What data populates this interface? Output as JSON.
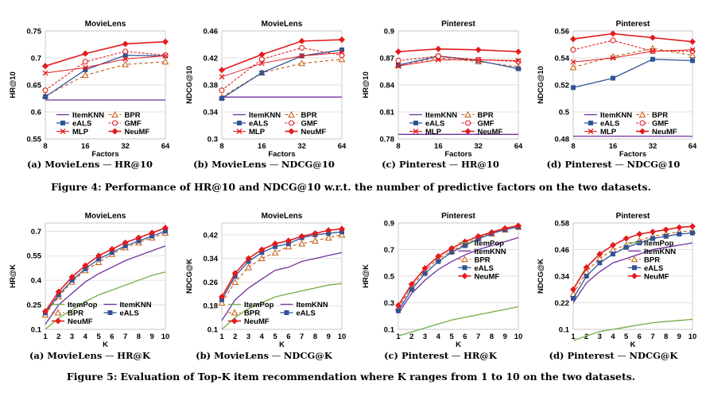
{
  "chart_data": [
    {
      "id": "f4a",
      "type": "line",
      "title": "MovieLens",
      "ylabel": "HR@10",
      "xlabel": "Factors",
      "x": [
        "8",
        "16",
        "32",
        "64"
      ],
      "ylim": [
        0.55,
        0.75
      ],
      "yticks": [
        "0.55",
        "0.6",
        "0.65",
        "0.7",
        "0.75"
      ],
      "legend_pos": "bottom",
      "legend_cols": 2,
      "legend_yfrac": 0.27,
      "series": [
        {
          "name": "ItemKNN",
          "style": "knn",
          "values": [
            0.622,
            0.622,
            0.622,
            0.622
          ]
        },
        {
          "name": "BPR",
          "style": "bpr",
          "values": [
            0.63,
            0.668,
            0.688,
            0.693
          ]
        },
        {
          "name": "eALS",
          "style": "eals",
          "values": [
            0.628,
            0.678,
            0.705,
            0.704
          ]
        },
        {
          "name": "GMF",
          "style": "gmf",
          "values": [
            0.64,
            0.693,
            0.712,
            0.705
          ]
        },
        {
          "name": "MLP",
          "style": "mlp",
          "values": [
            0.672,
            0.682,
            0.698,
            0.704
          ]
        },
        {
          "name": "NeuMF",
          "style": "neumf",
          "values": [
            0.685,
            0.708,
            0.726,
            0.73
          ]
        }
      ]
    },
    {
      "id": "f4b",
      "type": "line",
      "title": "MovieLens",
      "ylabel": "NDCG@10",
      "xlabel": "Factors",
      "x": [
        "8",
        "16",
        "32",
        "64"
      ],
      "ylim": [
        0.3,
        0.46
      ],
      "yticks": [
        "0.3",
        "0.34",
        "0.38",
        "0.42",
        "0.46"
      ],
      "legend_pos": "bottom",
      "legend_cols": 2,
      "legend_yfrac": 0.27,
      "series": [
        {
          "name": "ItemKNN",
          "style": "knn",
          "values": [
            0.362,
            0.362,
            0.362,
            0.362
          ]
        },
        {
          "name": "BPR",
          "style": "bpr",
          "values": [
            0.362,
            0.398,
            0.412,
            0.418
          ]
        },
        {
          "name": "eALS",
          "style": "eals",
          "values": [
            0.36,
            0.398,
            0.423,
            0.432
          ]
        },
        {
          "name": "GMF",
          "style": "gmf",
          "values": [
            0.372,
            0.418,
            0.435,
            0.424
          ]
        },
        {
          "name": "MLP",
          "style": "mlp",
          "values": [
            0.392,
            0.412,
            0.423,
            0.428
          ]
        },
        {
          "name": "NeuMF",
          "style": "neumf",
          "values": [
            0.402,
            0.425,
            0.445,
            0.447
          ]
        }
      ]
    },
    {
      "id": "f4c",
      "type": "line",
      "title": "Pinterest",
      "ylabel": "HR@10",
      "xlabel": "Factors",
      "x": [
        "8",
        "16",
        "32",
        "64"
      ],
      "ylim": [
        0.78,
        0.9
      ],
      "yticks": [
        "0.78",
        "0.81",
        "0.84",
        "0.87",
        "0.9"
      ],
      "legend_pos": "bottom",
      "legend_cols": 2,
      "legend_yfrac": 0.27,
      "series": [
        {
          "name": "ItemKNN",
          "style": "knn",
          "values": [
            0.785,
            0.785,
            0.785,
            0.785
          ]
        },
        {
          "name": "BPR",
          "style": "bpr",
          "values": [
            0.862,
            0.87,
            0.866,
            0.86
          ]
        },
        {
          "name": "eALS",
          "style": "eals",
          "values": [
            0.862,
            0.872,
            0.867,
            0.858
          ]
        },
        {
          "name": "GMF",
          "style": "gmf",
          "values": [
            0.867,
            0.872,
            0.868,
            0.866
          ]
        },
        {
          "name": "MLP",
          "style": "mlp",
          "values": [
            0.861,
            0.868,
            0.868,
            0.867
          ]
        },
        {
          "name": "NeuMF",
          "style": "neumf",
          "values": [
            0.877,
            0.88,
            0.879,
            0.877
          ]
        }
      ]
    },
    {
      "id": "f4d",
      "type": "line",
      "title": "Pinterest",
      "ylabel": "NDCG@10",
      "xlabel": "Factors",
      "x": [
        "8",
        "16",
        "32",
        "64"
      ],
      "ylim": [
        0.48,
        0.56
      ],
      "yticks": [
        "0.48",
        "0.5",
        "0.52",
        "0.54",
        "0.56"
      ],
      "legend_pos": "bottom",
      "legend_cols": 2,
      "legend_yfrac": 0.27,
      "series": [
        {
          "name": "ItemKNN",
          "style": "knn",
          "values": [
            0.482,
            0.482,
            0.482,
            0.482
          ]
        },
        {
          "name": "BPR",
          "style": "bpr",
          "values": [
            0.533,
            0.541,
            0.547,
            0.542
          ]
        },
        {
          "name": "eALS",
          "style": "eals",
          "values": [
            0.518,
            0.525,
            0.539,
            0.538
          ]
        },
        {
          "name": "GMF",
          "style": "gmf",
          "values": [
            0.546,
            0.553,
            0.545,
            0.545
          ]
        },
        {
          "name": "MLP",
          "style": "mlp",
          "values": [
            0.537,
            0.54,
            0.545,
            0.546
          ]
        },
        {
          "name": "NeuMF",
          "style": "neumf",
          "values": [
            0.554,
            0.558,
            0.555,
            0.552
          ]
        }
      ]
    },
    {
      "id": "f5a",
      "type": "line",
      "title": "MovieLens",
      "ylabel": "HR@K",
      "xlabel": "K",
      "x": [
        "1",
        "2",
        "3",
        "4",
        "5",
        "6",
        "7",
        "8",
        "9",
        "10"
      ],
      "ylim": [
        0.1,
        0.75
      ],
      "yticks": [
        "0.1",
        "0.25",
        "0.4",
        "0.55",
        "0.7"
      ],
      "legend_pos": "bottom",
      "legend_cols": 2,
      "legend_yfrac": 0.33,
      "series": [
        {
          "name": "ItemPop",
          "style": "pop",
          "values": [
            0.1,
            0.17,
            0.22,
            0.27,
            0.31,
            0.34,
            0.37,
            0.4,
            0.43,
            0.45
          ]
        },
        {
          "name": "ItemKNN",
          "style": "knn",
          "values": [
            0.13,
            0.25,
            0.32,
            0.39,
            0.44,
            0.48,
            0.52,
            0.55,
            0.58,
            0.61
          ]
        },
        {
          "name": "BPR",
          "style": "bpr",
          "values": [
            0.19,
            0.3,
            0.39,
            0.46,
            0.51,
            0.56,
            0.6,
            0.63,
            0.66,
            0.69
          ]
        },
        {
          "name": "eALS",
          "style": "eals",
          "values": [
            0.2,
            0.31,
            0.4,
            0.47,
            0.53,
            0.57,
            0.61,
            0.64,
            0.67,
            0.7
          ]
        },
        {
          "name": "NeuMF",
          "style": "neumf",
          "values": [
            0.21,
            0.33,
            0.42,
            0.49,
            0.55,
            0.59,
            0.63,
            0.66,
            0.69,
            0.72
          ]
        }
      ]
    },
    {
      "id": "f5b",
      "type": "line",
      "title": "MovieLens",
      "ylabel": "NDCG@K",
      "xlabel": "K",
      "x": [
        "1",
        "2",
        "3",
        "4",
        "5",
        "6",
        "7",
        "8",
        "9",
        "10"
      ],
      "ylim": [
        0.1,
        0.46
      ],
      "yticks": [
        "0.1",
        "0.18",
        "0.26",
        "0.34",
        "0.42"
      ],
      "legend_pos": "bottom",
      "legend_cols": 2,
      "legend_yfrac": 0.33,
      "series": [
        {
          "name": "ItemPop",
          "style": "pop",
          "values": [
            0.1,
            0.14,
            0.17,
            0.19,
            0.21,
            0.22,
            0.23,
            0.24,
            0.25,
            0.255
          ]
        },
        {
          "name": "ItemKNN",
          "style": "knn",
          "values": [
            0.13,
            0.2,
            0.24,
            0.27,
            0.3,
            0.31,
            0.33,
            0.34,
            0.35,
            0.36
          ]
        },
        {
          "name": "BPR",
          "style": "bpr",
          "values": [
            0.19,
            0.26,
            0.31,
            0.34,
            0.36,
            0.38,
            0.39,
            0.4,
            0.41,
            0.42
          ]
        },
        {
          "name": "eALS",
          "style": "eals",
          "values": [
            0.2,
            0.28,
            0.33,
            0.36,
            0.38,
            0.39,
            0.41,
            0.42,
            0.425,
            0.43
          ]
        },
        {
          "name": "NeuMF",
          "style": "neumf",
          "values": [
            0.21,
            0.29,
            0.34,
            0.37,
            0.39,
            0.4,
            0.415,
            0.425,
            0.435,
            0.44
          ]
        }
      ]
    },
    {
      "id": "f5c",
      "type": "line",
      "title": "Pinterest",
      "ylabel": "HR@K",
      "xlabel": "K",
      "x": [
        "1",
        "2",
        "3",
        "4",
        "5",
        "6",
        "7",
        "8",
        "9",
        "10"
      ],
      "ylim": [
        0.1,
        0.9
      ],
      "yticks": [
        "0.1",
        "0.3",
        "0.5",
        "0.7",
        "0.9"
      ],
      "legend_pos": "bottom",
      "legend_cols": 1,
      "legend_yfrac": 0.0,
      "series": [
        {
          "name": "ItemPop",
          "style": "pop",
          "values": [
            0.05,
            0.08,
            0.11,
            0.14,
            0.17,
            0.19,
            0.21,
            0.23,
            0.25,
            0.27
          ]
        },
        {
          "name": "ItemKNN",
          "style": "knn",
          "values": [
            0.22,
            0.37,
            0.47,
            0.55,
            0.61,
            0.66,
            0.7,
            0.73,
            0.76,
            0.79
          ]
        },
        {
          "name": "BPR",
          "style": "bpr",
          "values": [
            0.26,
            0.42,
            0.54,
            0.63,
            0.69,
            0.74,
            0.79,
            0.82,
            0.85,
            0.87
          ]
        },
        {
          "name": "eALS",
          "style": "eals",
          "values": [
            0.24,
            0.4,
            0.52,
            0.61,
            0.68,
            0.73,
            0.78,
            0.82,
            0.85,
            0.87
          ]
        },
        {
          "name": "NeuMF",
          "style": "neumf",
          "values": [
            0.28,
            0.44,
            0.56,
            0.65,
            0.71,
            0.76,
            0.8,
            0.83,
            0.86,
            0.88
          ]
        }
      ]
    },
    {
      "id": "f5d",
      "type": "line",
      "title": "Pinterest",
      "ylabel": "NDCG@K",
      "xlabel": "K",
      "x": [
        "1",
        "2",
        "3",
        "4",
        "5",
        "6",
        "7",
        "8",
        "9",
        "10"
      ],
      "ylim": [
        0.1,
        0.58
      ],
      "yticks": [
        "0.1",
        "0.22",
        "0.34",
        "0.46",
        "0.58"
      ],
      "legend_pos": "right",
      "legend_cols": 1,
      "legend_yfrac": 0.0,
      "series": [
        {
          "name": "ItemPop",
          "style": "pop",
          "values": [
            0.05,
            0.07,
            0.09,
            0.1,
            0.11,
            0.12,
            0.13,
            0.135,
            0.14,
            0.145
          ]
        },
        {
          "name": "ItemKNN",
          "style": "knn",
          "values": [
            0.22,
            0.31,
            0.36,
            0.4,
            0.42,
            0.44,
            0.46,
            0.47,
            0.48,
            0.49
          ]
        },
        {
          "name": "BPR",
          "style": "bpr",
          "values": [
            0.26,
            0.36,
            0.42,
            0.46,
            0.48,
            0.5,
            0.52,
            0.53,
            0.54,
            0.545
          ]
        },
        {
          "name": "eALS",
          "style": "eals",
          "values": [
            0.24,
            0.34,
            0.4,
            0.44,
            0.47,
            0.49,
            0.51,
            0.52,
            0.53,
            0.535
          ]
        },
        {
          "name": "NeuMF",
          "style": "neumf",
          "values": [
            0.28,
            0.38,
            0.44,
            0.48,
            0.51,
            0.53,
            0.54,
            0.55,
            0.56,
            0.565
          ]
        }
      ]
    }
  ],
  "styles": {
    "knn": {
      "color": "#7030a0",
      "dash": "",
      "marker": "none",
      "width": 1.3
    },
    "pop": {
      "color": "#70ad47",
      "dash": "",
      "marker": "none",
      "width": 1.3
    },
    "bpr": {
      "color": "#c55a11",
      "dash": "4,3",
      "marker": "tri",
      "width": 1.1
    },
    "eals": {
      "color": "#2f5597",
      "dash": "",
      "marker": "square",
      "width": 1.3
    },
    "gmf": {
      "color": "#e31a1c",
      "dash": "3,2",
      "marker": "circle",
      "width": 1.1
    },
    "mlp": {
      "color": "#e31a1c",
      "dash": "",
      "marker": "x",
      "width": 1.0
    },
    "neumf": {
      "color": "#e31a1c",
      "dash": "",
      "marker": "diamond",
      "width": 1.6
    }
  },
  "subcaptions": [
    {
      "label": "(a) MovieLens",
      "sep": " — ",
      "metric": "HR@10"
    },
    {
      "label": "(b) MovieLens",
      "sep": " — ",
      "metric": "NDCG@10"
    },
    {
      "label": "(c) Pinterest",
      "sep": " — ",
      "metric": "HR@10"
    },
    {
      "label": "(d) Pinterest",
      "sep": " — ",
      "metric": "NDCG@10"
    },
    {
      "label": "(a) MovieLens",
      "sep": " — ",
      "metric": "HR@K"
    },
    {
      "label": "(b) MovieLens",
      "sep": " — ",
      "metric": "NDCG@K"
    },
    {
      "label": "(c) Pinterest",
      "sep": " — ",
      "metric": "HR@K"
    },
    {
      "label": "(d) Pinterest",
      "sep": " — ",
      "metric": "NDCG@K"
    }
  ],
  "figure4": {
    "label": "Figure 4:",
    "text": "Performance of HR@10 and NDCG@10 w.r.t. the number of predictive factors on the two datasets."
  },
  "figure5": {
    "label": "Figure 5:",
    "text": "Evaluation of Top-K item recommendation where K ranges from 1 to 10 on the two datasets."
  }
}
